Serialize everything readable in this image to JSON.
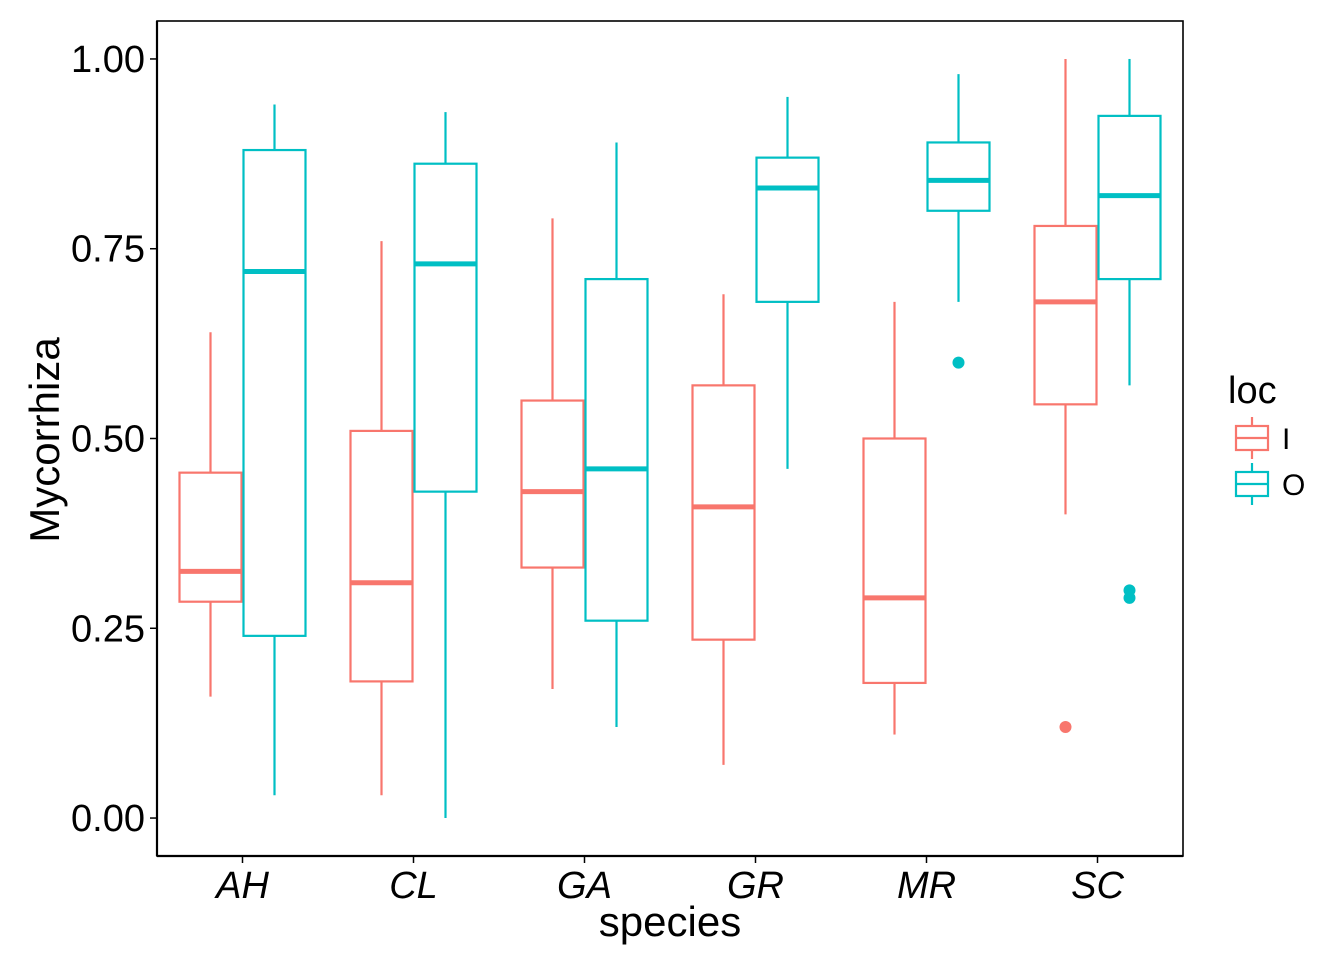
{
  "chart_data": {
    "type": "boxplot",
    "xlabel": "species",
    "ylabel": "Mycorrhiza",
    "ylim": [
      -0.05,
      1.05
    ],
    "yticks": [
      "0.00",
      "0.25",
      "0.50",
      "0.75",
      "1.00"
    ],
    "ytick_values": [
      0,
      0.25,
      0.5,
      0.75,
      1.0
    ],
    "categories": [
      "AH",
      "CL",
      "GA",
      "GR",
      "MR",
      "SC"
    ],
    "legend": {
      "title": "loc",
      "position": "right"
    },
    "grid": false,
    "series": [
      {
        "name": "I",
        "color": "#F8766D",
        "boxes": [
          {
            "min": 0.16,
            "q1": 0.285,
            "median": 0.325,
            "q3": 0.455,
            "max": 0.64,
            "outliers": []
          },
          {
            "min": 0.03,
            "q1": 0.18,
            "median": 0.31,
            "q3": 0.51,
            "max": 0.76,
            "outliers": []
          },
          {
            "min": 0.17,
            "q1": 0.33,
            "median": 0.43,
            "q3": 0.55,
            "max": 0.79,
            "outliers": []
          },
          {
            "min": 0.07,
            "q1": 0.235,
            "median": 0.41,
            "q3": 0.57,
            "max": 0.69,
            "outliers": []
          },
          {
            "min": 0.11,
            "q1": 0.178,
            "median": 0.29,
            "q3": 0.5,
            "max": 0.68,
            "outliers": []
          },
          {
            "min": 0.4,
            "q1": 0.545,
            "median": 0.68,
            "q3": 0.78,
            "max": 1.0,
            "outliers": [
              0.12
            ]
          }
        ]
      },
      {
        "name": "O",
        "color": "#00BFC4",
        "boxes": [
          {
            "min": 0.03,
            "q1": 0.24,
            "median": 0.72,
            "q3": 0.88,
            "max": 0.94,
            "outliers": []
          },
          {
            "min": 0.0,
            "q1": 0.43,
            "median": 0.73,
            "q3": 0.862,
            "max": 0.93,
            "outliers": []
          },
          {
            "min": 0.12,
            "q1": 0.26,
            "median": 0.46,
            "q3": 0.71,
            "max": 0.89,
            "outliers": []
          },
          {
            "min": 0.46,
            "q1": 0.68,
            "median": 0.83,
            "q3": 0.87,
            "max": 0.95,
            "outliers": []
          },
          {
            "min": 0.68,
            "q1": 0.8,
            "median": 0.84,
            "q3": 0.89,
            "max": 0.98,
            "outliers": [
              0.6
            ]
          },
          {
            "min": 0.57,
            "q1": 0.71,
            "median": 0.82,
            "q3": 0.925,
            "max": 1.0,
            "outliers": [
              0.29,
              0.3
            ]
          }
        ]
      }
    ]
  }
}
